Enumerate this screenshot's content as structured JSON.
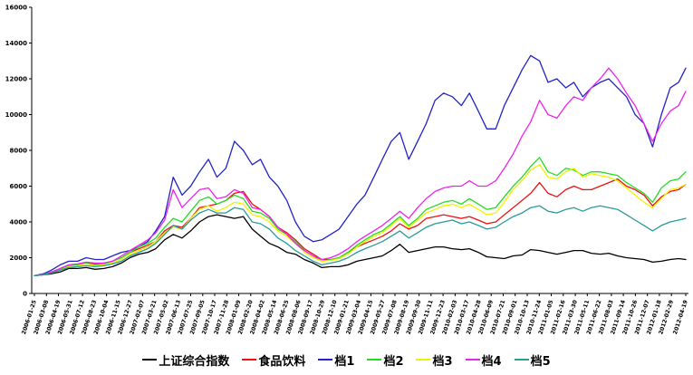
{
  "chart_data": {
    "type": "line",
    "grid": false,
    "legend": "bottom",
    "xlim": [
      "2006-01-25",
      "2012-04-19"
    ],
    "ylim": [
      0,
      16000
    ],
    "y_ticks": [
      0,
      2000,
      4000,
      6000,
      8000,
      10000,
      12000,
      14000,
      16000
    ],
    "x_ticks": [
      "2006-01-25",
      "2006-03-08",
      "2006-04-19",
      "2006-05-31",
      "2006-07-12",
      "2006-08-23",
      "2006-10-04",
      "2006-11-15",
      "2006-12-27",
      "2007-02-07",
      "2007-03-21",
      "2007-05-02",
      "2007-06-13",
      "2007-07-25",
      "2007-09-05",
      "2007-10-17",
      "2007-11-28",
      "2008-01-09",
      "2008-02-20",
      "2008-04-02",
      "2008-05-14",
      "2008-06-25",
      "2008-08-06",
      "2008-09-17",
      "2008-10-29",
      "2008-12-10",
      "2009-01-21",
      "2009-03-04",
      "2009-04-15",
      "2009-05-27",
      "2009-07-08",
      "2009-08-19",
      "2009-09-30",
      "2009-11-11",
      "2009-12-23",
      "2010-02-03",
      "2010-03-17",
      "2010-04-28",
      "2010-06-09",
      "2010-07-21",
      "2010-09-01",
      "2010-10-13",
      "2010-11-24",
      "2011-01-05",
      "2011-02-16",
      "2011-03-30",
      "2011-05-11",
      "2011-06-22",
      "2011-08-03",
      "2011-09-14",
      "2011-10-26",
      "2011-12-07",
      "2012-01-18",
      "2012-02-29",
      "2012-04-19"
    ],
    "x": [
      "2006-01-25",
      "2006-02-25",
      "2006-03-25",
      "2006-04-25",
      "2006-05-25",
      "2006-06-25",
      "2006-07-25",
      "2006-08-25",
      "2006-09-25",
      "2006-10-25",
      "2006-11-25",
      "2006-12-25",
      "2007-01-25",
      "2007-02-25",
      "2007-03-25",
      "2007-04-25",
      "2007-05-25",
      "2007-06-25",
      "2007-07-25",
      "2007-08-25",
      "2007-09-25",
      "2007-10-25",
      "2007-11-25",
      "2007-12-25",
      "2008-01-25",
      "2008-02-25",
      "2008-03-25",
      "2008-04-25",
      "2008-05-25",
      "2008-06-25",
      "2008-07-25",
      "2008-08-25",
      "2008-09-25",
      "2008-10-25",
      "2008-11-25",
      "2008-12-25",
      "2009-01-25",
      "2009-02-25",
      "2009-03-25",
      "2009-04-25",
      "2009-05-25",
      "2009-06-25",
      "2009-07-25",
      "2009-08-25",
      "2009-09-25",
      "2009-10-25",
      "2009-11-25",
      "2009-12-25",
      "2010-01-25",
      "2010-02-25",
      "2010-03-25",
      "2010-04-25",
      "2010-05-25",
      "2010-06-25",
      "2010-07-25",
      "2010-08-25",
      "2010-09-25",
      "2010-10-25",
      "2010-11-25",
      "2010-12-25",
      "2011-01-25",
      "2011-02-25",
      "2011-03-25",
      "2011-04-25",
      "2011-05-25",
      "2011-06-25",
      "2011-07-25",
      "2011-08-25",
      "2011-09-25",
      "2011-10-25",
      "2011-11-25",
      "2011-12-25",
      "2012-01-25",
      "2012-02-25",
      "2012-03-25",
      "2012-04-19"
    ],
    "series": [
      {
        "name": "上证综合指数",
        "color": "#000000",
        "values": [
          1000,
          1050,
          1100,
          1200,
          1400,
          1400,
          1450,
          1350,
          1400,
          1500,
          1700,
          2000,
          2200,
          2300,
          2500,
          3000,
          3300,
          3100,
          3500,
          4000,
          4300,
          4400,
          4300,
          4200,
          4300,
          3600,
          3200,
          2800,
          2600,
          2300,
          2200,
          1900,
          1700,
          1450,
          1500,
          1500,
          1600,
          1800,
          1900,
          2000,
          2100,
          2400,
          2750,
          2300,
          2400,
          2500,
          2600,
          2600,
          2500,
          2450,
          2500,
          2300,
          2050,
          2000,
          1950,
          2100,
          2150,
          2450,
          2400,
          2300,
          2200,
          2300,
          2400,
          2400,
          2250,
          2200,
          2250,
          2100,
          2000,
          1950,
          1900,
          1750,
          1800,
          1900,
          1950,
          1900
        ]
      },
      {
        "name": "食品饮料",
        "color": "#ee1111",
        "values": [
          1000,
          1050,
          1150,
          1300,
          1500,
          1600,
          1700,
          1650,
          1700,
          1800,
          2000,
          2300,
          2500,
          2700,
          2900,
          3500,
          3800,
          3700,
          4200,
          4800,
          4900,
          5000,
          5200,
          5600,
          5700,
          5000,
          4700,
          4300,
          3700,
          3400,
          3000,
          2500,
          2200,
          1900,
          1900,
          2000,
          2300,
          2600,
          2800,
          3000,
          3200,
          3500,
          3900,
          3600,
          3800,
          4200,
          4300,
          4400,
          4300,
          4200,
          4300,
          4100,
          3900,
          4000,
          4400,
          4800,
          5200,
          5600,
          6200,
          5600,
          5400,
          5800,
          6000,
          5800,
          5800,
          6000,
          6200,
          6400,
          6000,
          5800,
          5500,
          4900,
          5400,
          5700,
          5800,
          6100
        ]
      },
      {
        "name": "档1",
        "color": "#2323c8",
        "values": [
          1000,
          1100,
          1300,
          1600,
          1800,
          1800,
          2000,
          1900,
          1900,
          2100,
          2300,
          2400,
          2600,
          2900,
          3500,
          4300,
          6500,
          5500,
          6000,
          6800,
          7500,
          6500,
          7000,
          8500,
          8000,
          7200,
          7500,
          6500,
          6000,
          5200,
          4000,
          3200,
          2900,
          3000,
          3300,
          3600,
          4300,
          5000,
          5500,
          6500,
          7500,
          8500,
          9000,
          7500,
          8500,
          9500,
          10800,
          11200,
          11000,
          10500,
          11200,
          10200,
          9200,
          9200,
          10500,
          11500,
          12500,
          13300,
          13000,
          11800,
          12000,
          11500,
          11800,
          11000,
          11500,
          11800,
          12000,
          11500,
          11000,
          10000,
          9500,
          8200,
          10000,
          11500,
          11800,
          12600
        ]
      },
      {
        "name": "档2",
        "color": "#22dd22",
        "values": [
          1000,
          1050,
          1200,
          1350,
          1550,
          1600,
          1700,
          1600,
          1650,
          1800,
          2000,
          2300,
          2600,
          2800,
          3100,
          3700,
          4200,
          4000,
          4600,
          5200,
          5400,
          5000,
          5200,
          5500,
          5300,
          4600,
          4500,
          4200,
          3600,
          3300,
          2900,
          2400,
          2100,
          1800,
          1900,
          2000,
          2300,
          2700,
          3000,
          3300,
          3500,
          3900,
          4300,
          3800,
          4200,
          4700,
          4900,
          5100,
          5200,
          5000,
          5300,
          5000,
          4700,
          4800,
          5400,
          6000,
          6500,
          7100,
          7600,
          6800,
          6600,
          7000,
          6900,
          6600,
          6800,
          6800,
          6700,
          6600,
          6200,
          5900,
          5600,
          5100,
          5900,
          6300,
          6400,
          6800
        ]
      },
      {
        "name": "档3",
        "color": "#f0f000",
        "values": [
          1000,
          1050,
          1150,
          1300,
          1500,
          1550,
          1650,
          1550,
          1600,
          1700,
          1900,
          2200,
          2400,
          2600,
          2900,
          3400,
          3700,
          3600,
          4200,
          4700,
          4900,
          4600,
          4800,
          5100,
          5000,
          4400,
          4300,
          4000,
          3500,
          3200,
          2800,
          2300,
          2000,
          1800,
          1850,
          1950,
          2200,
          2600,
          2900,
          3200,
          3400,
          3800,
          4200,
          3700,
          4100,
          4500,
          4700,
          4900,
          5000,
          4800,
          5000,
          4700,
          4400,
          4500,
          5100,
          5800,
          6300,
          6900,
          7200,
          6500,
          6400,
          6800,
          7000,
          6500,
          6700,
          6600,
          6500,
          6300,
          5900,
          5500,
          5100,
          4800,
          5300,
          5800,
          5900,
          6100
        ]
      },
      {
        "name": "档4",
        "color": "#ee22ee",
        "values": [
          1000,
          1050,
          1200,
          1400,
          1600,
          1650,
          1750,
          1700,
          1700,
          1800,
          2100,
          2400,
          2700,
          3000,
          3400,
          4100,
          5800,
          4800,
          5300,
          5800,
          5900,
          5300,
          5400,
          5800,
          5600,
          4800,
          4700,
          4300,
          3700,
          3300,
          2800,
          2400,
          2100,
          1900,
          2000,
          2200,
          2500,
          2900,
          3200,
          3500,
          3800,
          4200,
          4600,
          4200,
          4800,
          5300,
          5700,
          5900,
          6000,
          6000,
          6300,
          6000,
          6000,
          6300,
          7000,
          7800,
          8800,
          9600,
          10800,
          10000,
          9800,
          10500,
          11000,
          10800,
          11500,
          12000,
          12600,
          12000,
          11200,
          10500,
          9500,
          8500,
          9500,
          10200,
          10500,
          11300
        ]
      },
      {
        "name": "档5",
        "color": "#2a9a9a",
        "values": [
          1000,
          1050,
          1150,
          1300,
          1450,
          1500,
          1550,
          1500,
          1550,
          1650,
          1800,
          2100,
          2300,
          2500,
          2800,
          3300,
          3800,
          3600,
          4100,
          4500,
          4700,
          4500,
          4500,
          4800,
          4700,
          4000,
          3900,
          3600,
          3100,
          2800,
          2400,
          2100,
          1800,
          1600,
          1700,
          1800,
          2000,
          2300,
          2500,
          2700,
          2900,
          3200,
          3500,
          3100,
          3400,
          3700,
          3900,
          4000,
          4100,
          3900,
          4000,
          3800,
          3600,
          3700,
          4000,
          4300,
          4500,
          4800,
          4900,
          4600,
          4500,
          4700,
          4800,
          4600,
          4800,
          4900,
          4800,
          4700,
          4400,
          4100,
          3800,
          3500,
          3800,
          4000,
          4100,
          4200
        ]
      }
    ]
  }
}
